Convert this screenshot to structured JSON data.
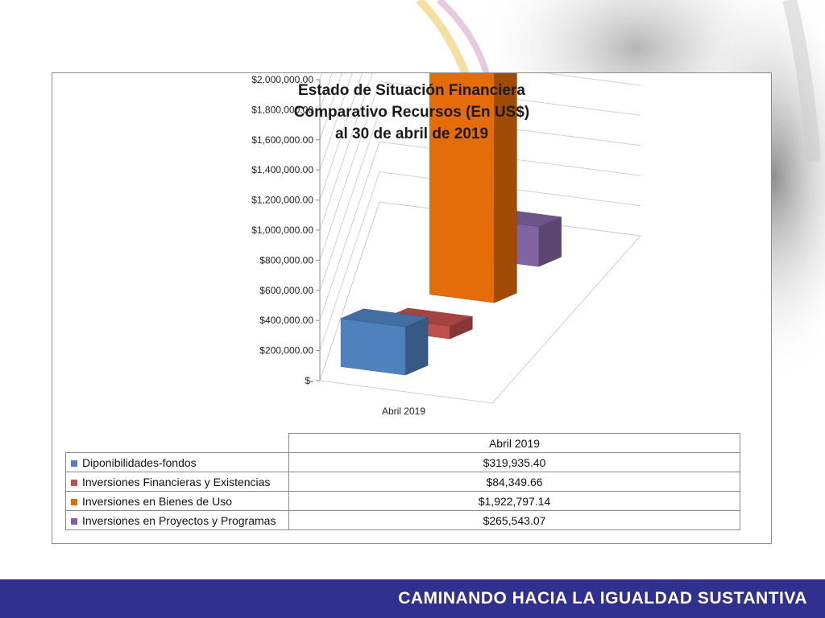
{
  "chart_data": {
    "type": "bar",
    "title_lines": [
      "Estado de Situación Financiera",
      "Comparativo Recursos (En US$)",
      "al 30 de  abril  de  2019"
    ],
    "categories": [
      "Abril 2019"
    ],
    "series": [
      {
        "name": "Diponibilidades-fondos",
        "values": [
          319935.4
        ],
        "color": "#4f81bd"
      },
      {
        "name": "Inversiones Financieras  y  Existencias",
        "values": [
          84349.66
        ],
        "color": "#c0504d"
      },
      {
        "name": "Inversiones en Bienes de Uso",
        "values": [
          1922797.14
        ],
        "color": "#e46c0a"
      },
      {
        "name": "Inversiones en Proyectos y Programas",
        "values": [
          265543.07
        ],
        "color": "#8064a2"
      }
    ],
    "y_ticks": [
      "$-",
      "$200,000.00",
      "$400,000.00",
      "$600,000.00",
      "$800,000.00",
      "$1,000,000.00",
      "$1,200,000.00",
      "$1,400,000.00",
      "$1,600,000.00",
      "$1,800,000.00",
      "$2,000,000.00"
    ],
    "ylim": [
      0,
      2000000
    ],
    "grid": true,
    "legend": "bottom-table",
    "table": {
      "header": "Abril 2019",
      "values": [
        "$319,935.40",
        "$84,349.66",
        "$1,922,797.14",
        "$265,543.07"
      ]
    }
  },
  "footer": {
    "text": "CAMINANDO HACIA LA IGUALDAD SUSTANTIVA"
  }
}
